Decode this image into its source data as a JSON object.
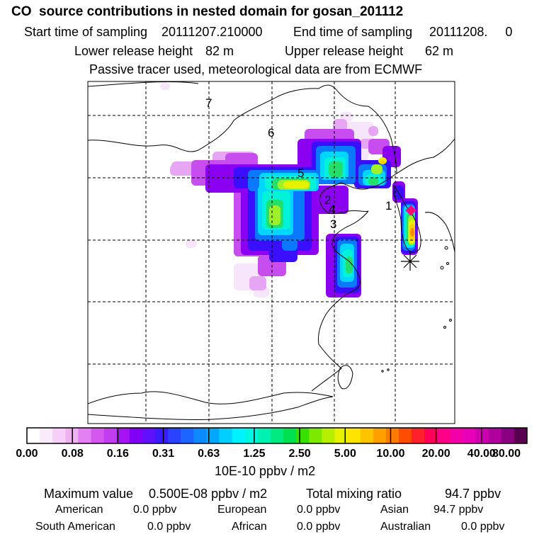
{
  "header": {
    "title": "CO  source contributions in nested domain for gosan_201112",
    "start_label": "Start time of sampling",
    "start_value": "20111207.210000",
    "end_label": "End time of sampling",
    "end_value": "20111208.     0",
    "lower_label": "Lower release height",
    "lower_value": "82 m",
    "upper_label": "Upper release height",
    "upper_value": "62 m",
    "note": "Passive tracer used, meteorological data are from ECMWF"
  },
  "map": {
    "region_labels": [
      "1",
      "2",
      "3",
      "4",
      "5",
      "6",
      "7"
    ],
    "receptor_symbol": "asterisk",
    "source_symbol": "diamond",
    "gridlines": true,
    "plume_colors": [
      "#f7e6fb",
      "#e7a6f4",
      "#c84dee",
      "#8b00f0",
      "#3a0fff",
      "#0a78ff",
      "#00d6ff",
      "#00f2d8",
      "#24e06a",
      "#9df02a",
      "#e6f200",
      "#ffcc00",
      "#ff8c00",
      "#ff1a4a",
      "#ff00aa",
      "#e600c0"
    ]
  },
  "colorbar": {
    "ticks": [
      "0.00",
      "0.08",
      "0.16",
      "0.31",
      "0.63",
      "1.25",
      "2.50",
      "5.00",
      "10.00",
      "20.00",
      "40.00",
      "80.00"
    ],
    "colors": [
      "#ffffff",
      "#fbeafc",
      "#f5cff7",
      "#efb0f4",
      "#e481f2",
      "#d457ef",
      "#c23cf0",
      "#a514f2",
      "#7f00f5",
      "#6010fb",
      "#3a1cff",
      "#2b43ff",
      "#1c66ff",
      "#0e8aff",
      "#00a8ff",
      "#00cfff",
      "#00f2ff",
      "#00f7df",
      "#00f2b2",
      "#00ea82",
      "#00e050",
      "#36e000",
      "#7de800",
      "#b8ef00",
      "#e6f200",
      "#ffe400",
      "#ffc400",
      "#ff9f00",
      "#ff7a00",
      "#ff4d00",
      "#ff1f2d",
      "#ff0058",
      "#ff0087",
      "#f500a8",
      "#e800b8",
      "#cc00b0",
      "#b0009e",
      "#8a007e",
      "#5a0050"
    ],
    "unit": "10E-10 ppbv / m2"
  },
  "stats": {
    "max_label": "Maximum value",
    "max_value": "0.500E-08 ppbv / m2",
    "total_label": "Total mixing ratio",
    "total_value": "94.7 ppbv",
    "regions": [
      {
        "name": "American",
        "value": "0.0 ppbv"
      },
      {
        "name": "European",
        "value": "0.0 ppbv"
      },
      {
        "name": "Asian",
        "value": "94.7 ppbv"
      },
      {
        "name": "South American",
        "value": "0.0 ppbv"
      },
      {
        "name": "African",
        "value": "0.0 ppbv"
      },
      {
        "name": "Australian",
        "value": "0.0 ppbv"
      }
    ]
  }
}
